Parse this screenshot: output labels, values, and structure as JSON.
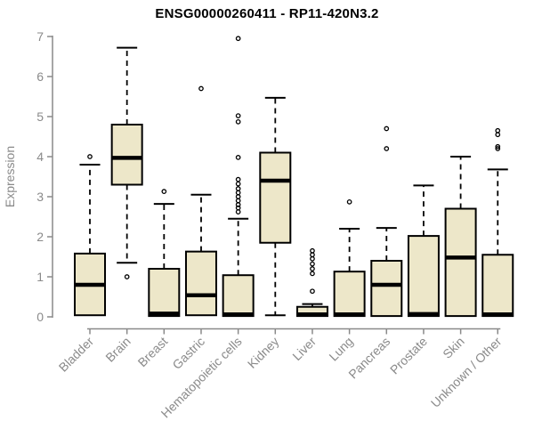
{
  "chart_data": {
    "type": "boxplot",
    "title": "ENSG00000260411 - RP11-420N3.2",
    "ylabel": "Expression",
    "xlabel": "",
    "ylim": [
      0,
      7
    ],
    "yticks": [
      0,
      1,
      2,
      3,
      4,
      5,
      6,
      7
    ],
    "grid": false,
    "legend": null,
    "categories": [
      "Bladder",
      "Brain",
      "Breast",
      "Gastric",
      "Hematopoietic cells",
      "Kidney",
      "Liver",
      "Lung",
      "Pancreas",
      "Prostate",
      "Skin",
      "Unknown / Other"
    ],
    "boxes": [
      {
        "category": "Bladder",
        "whisker_low": 0.04,
        "q1": 0.04,
        "median": 0.8,
        "q3": 1.58,
        "whisker_high": 3.8,
        "outliers": [
          4.0
        ]
      },
      {
        "category": "Brain",
        "whisker_low": 1.35,
        "q1": 3.3,
        "median": 3.97,
        "q3": 4.8,
        "whisker_high": 6.72,
        "outliers": [
          1.0
        ]
      },
      {
        "category": "Breast",
        "whisker_low": 0.02,
        "q1": 0.02,
        "median": 0.08,
        "q3": 1.2,
        "whisker_high": 2.82,
        "outliers": [
          3.13
        ]
      },
      {
        "category": "Gastric",
        "whisker_low": 0.04,
        "q1": 0.04,
        "median": 0.54,
        "q3": 1.63,
        "whisker_high": 3.05,
        "outliers": [
          5.7
        ]
      },
      {
        "category": "Hematopoietic cells",
        "whisker_low": 0.02,
        "q1": 0.02,
        "median": 0.06,
        "q3": 1.04,
        "whisker_high": 2.45,
        "outliers": [
          2.62,
          2.72,
          2.8,
          2.9,
          3.0,
          3.1,
          3.2,
          3.32,
          3.43,
          3.98,
          4.87,
          5.02,
          6.95
        ]
      },
      {
        "category": "Kidney",
        "whisker_low": 0.04,
        "q1": 1.85,
        "median": 3.4,
        "q3": 4.1,
        "whisker_high": 5.47,
        "outliers": []
      },
      {
        "category": "Liver",
        "whisker_low": 0.02,
        "q1": 0.02,
        "median": 0.06,
        "q3": 0.25,
        "whisker_high": 0.32,
        "outliers": [
          0.64,
          1.08,
          1.2,
          1.32,
          1.45,
          1.55,
          1.65
        ]
      },
      {
        "category": "Lung",
        "whisker_low": 0.02,
        "q1": 0.02,
        "median": 0.06,
        "q3": 1.13,
        "whisker_high": 2.2,
        "outliers": [
          2.87
        ]
      },
      {
        "category": "Pancreas",
        "whisker_low": 0.02,
        "q1": 0.02,
        "median": 0.8,
        "q3": 1.4,
        "whisker_high": 2.22,
        "outliers": [
          4.2,
          4.7
        ]
      },
      {
        "category": "Prostate",
        "whisker_low": 0.02,
        "q1": 0.02,
        "median": 0.07,
        "q3": 2.02,
        "whisker_high": 3.28,
        "outliers": []
      },
      {
        "category": "Skin",
        "whisker_low": 0.02,
        "q1": 0.02,
        "median": 1.48,
        "q3": 2.7,
        "whisker_high": 4.0,
        "outliers": []
      },
      {
        "category": "Unknown / Other",
        "whisker_low": 0.02,
        "q1": 0.02,
        "median": 0.06,
        "q3": 1.55,
        "whisker_high": 3.68,
        "outliers": [
          4.2,
          4.25,
          4.55,
          4.65
        ]
      }
    ]
  },
  "colors": {
    "background": "#FFFFFF",
    "box_fill": "#EDE7C9",
    "box_border": "#000000",
    "median": "#000000",
    "whisker": "#000000",
    "outlier": "#000000",
    "axis": "#8A8A8A",
    "tick_label": "#8A8A8A",
    "title": "#000000"
  }
}
